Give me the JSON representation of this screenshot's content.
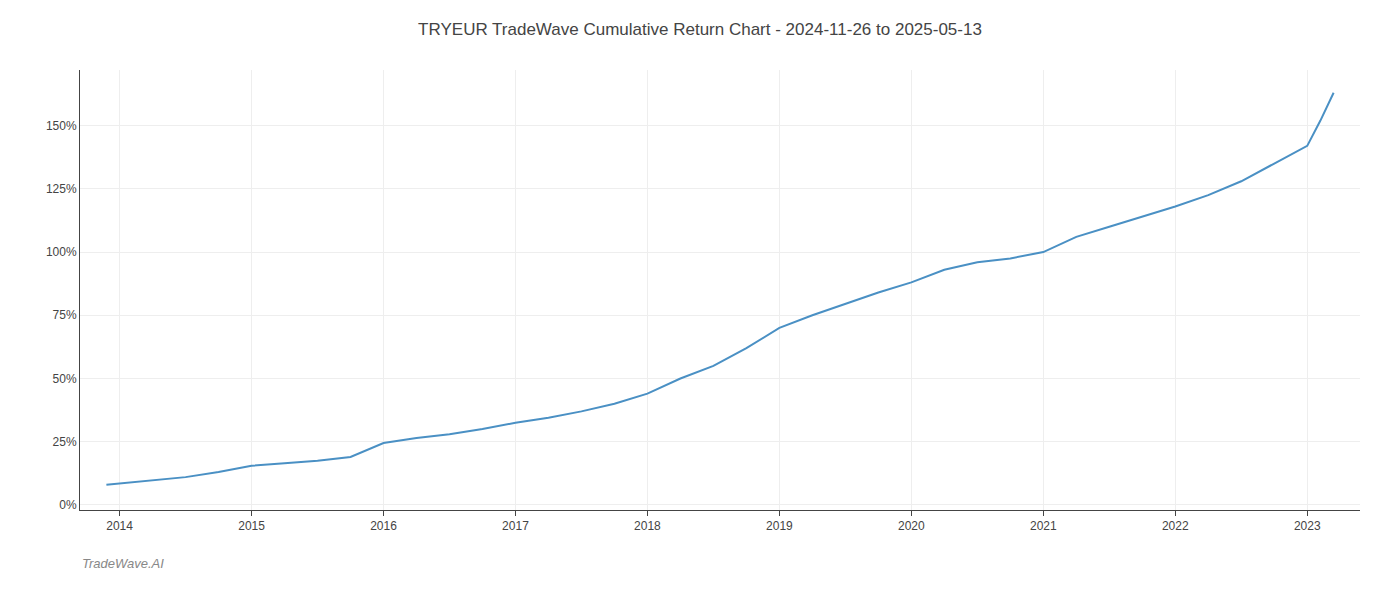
{
  "chart_data": {
    "type": "line",
    "title": "TRYEUR TradeWave Cumulative Return Chart - 2024-11-26 to 2025-05-13",
    "annotations": [
      "TradeWave.AI"
    ],
    "x": [
      2013.9,
      2014.0,
      2014.25,
      2014.5,
      2014.75,
      2015.0,
      2015.25,
      2015.5,
      2015.75,
      2016.0,
      2016.25,
      2016.5,
      2016.75,
      2017.0,
      2017.25,
      2017.5,
      2017.75,
      2018.0,
      2018.25,
      2018.5,
      2018.75,
      2019.0,
      2019.25,
      2019.5,
      2019.75,
      2020.0,
      2020.25,
      2020.5,
      2020.75,
      2021.0,
      2021.25,
      2021.5,
      2021.75,
      2022.0,
      2022.25,
      2022.5,
      2022.75,
      2023.0,
      2023.1,
      2023.2
    ],
    "values": [
      0.08,
      0.085,
      0.1,
      0.11,
      0.13,
      0.155,
      0.165,
      0.175,
      0.19,
      0.245,
      0.265,
      0.28,
      0.3,
      0.325,
      0.345,
      0.37,
      0.4,
      0.44,
      0.5,
      0.55,
      0.62,
      0.7,
      0.75,
      0.795,
      0.84,
      0.88,
      0.93,
      0.96,
      0.975,
      1.0,
      1.06,
      1.1,
      1.14,
      1.18,
      1.225,
      1.28,
      1.35,
      1.42,
      1.52,
      1.63
    ],
    "color": "#4a90c4",
    "xlim": [
      2013.7,
      2023.4
    ],
    "xticks": [
      2014,
      2015,
      2016,
      2017,
      2018,
      2019,
      2020,
      2021,
      2022,
      2023
    ],
    "ylim": [
      -0.02,
      1.72
    ],
    "yticks": [
      {
        "value": 0,
        "label": "0%"
      },
      {
        "value": 0.25,
        "label": "25%"
      },
      {
        "value": 0.5,
        "label": "50%"
      },
      {
        "value": 0.75,
        "label": "75%"
      },
      {
        "value": 1.0,
        "label": "100%"
      },
      {
        "value": 1.25,
        "label": "125%"
      },
      {
        "value": 1.5,
        "label": "150%"
      }
    ],
    "grid": true
  }
}
